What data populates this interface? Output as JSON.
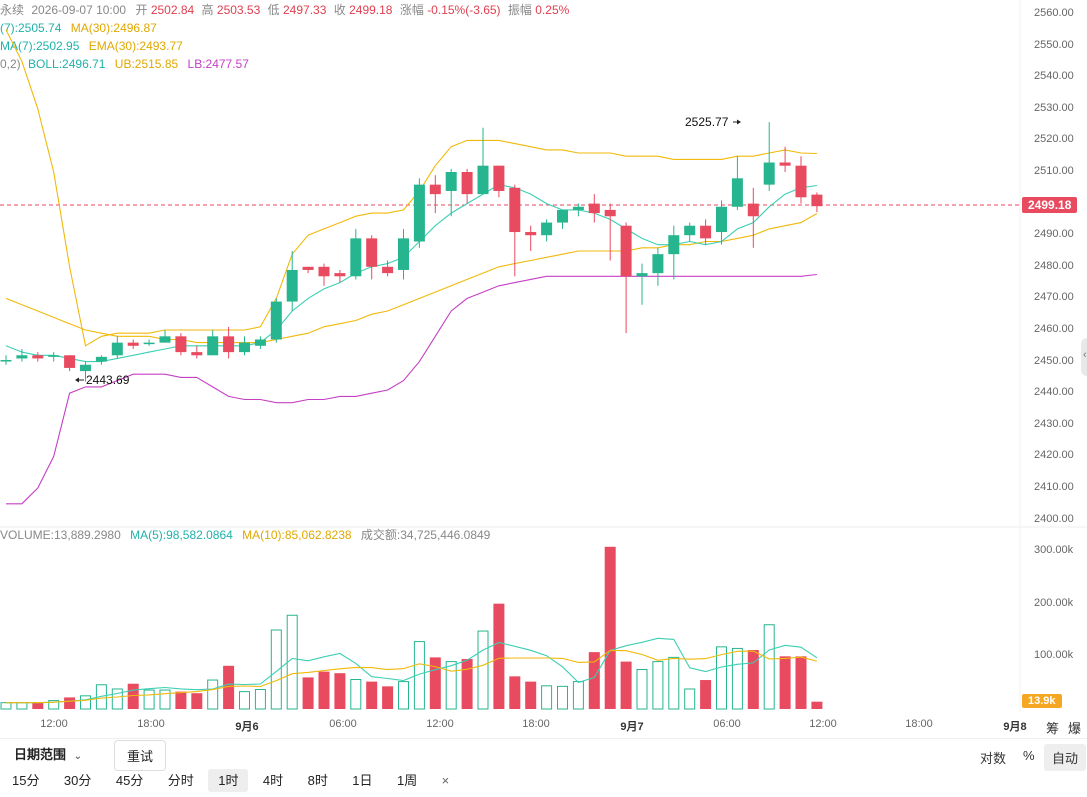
{
  "header": {
    "line1": {
      "symbol": "永续",
      "datetime": "2026-09-07 10:00",
      "open_label": "开",
      "open": "2502.84",
      "high_label": "高",
      "high": "2503.53",
      "low_label": "低",
      "low": "2497.33",
      "close_label": "收",
      "close": "2499.18",
      "change_label": "涨幅",
      "change": "-0.15%(-3.65)",
      "amp_label": "振幅",
      "amp": "0.25%"
    },
    "line2": {
      "ma7": "(7):2505.74",
      "ma30": "MA(30):2496.87"
    },
    "line3": {
      "ema7": "MA(7):2502.95",
      "ema30": "EMA(30):2493.77"
    },
    "line4": {
      "boll_prefix": "0,2)",
      "boll": "BOLL:2496.71",
      "ub": "UB:2515.85",
      "lb": "LB:2477.57"
    }
  },
  "volume_header": {
    "volume": "VOLUME:13,889.2980",
    "ma5": "MA(5):98,582.0864",
    "ma10": "MA(10):85,062.8238",
    "turnover": "成交额:34,725,446.0849"
  },
  "price_axis": [
    "2560.00",
    "2550.00",
    "2540.00",
    "2530.00",
    "2520.00",
    "2510.00",
    "2499.18",
    "2490.00",
    "2480.00",
    "2470.00",
    "2460.00",
    "2450.00",
    "2440.00",
    "2430.00",
    "2420.00",
    "2410.00",
    "2400.00"
  ],
  "volume_axis": [
    "300.00k",
    "200.00k",
    "100.00k"
  ],
  "current_price": "2499.18",
  "current_volume": "13.9k",
  "annotations": {
    "high": "2525.77",
    "low": "2443.69"
  },
  "time_axis": [
    "12:00",
    "18:00",
    "9月6",
    "06:00",
    "12:00",
    "18:00",
    "9月7",
    "06:00",
    "12:00",
    "18:00",
    "9月8"
  ],
  "corner_labels": [
    "筹",
    "爆"
  ],
  "toolbar": {
    "date_range": "日期范围",
    "reset": "重试",
    "log_scale": "对数",
    "percent": "%",
    "auto": "自动",
    "intervals": [
      "15分",
      "30分",
      "45分",
      "分时",
      "1时",
      "4时",
      "8时",
      "1日",
      "1周"
    ],
    "active_interval": "1时",
    "close": "×"
  },
  "colors": {
    "up": "#26b58e",
    "down": "#e84a5f",
    "ma_short": "#3ccfb3",
    "ma_long": "#f0b90b",
    "boll_lower": "#c540c5"
  },
  "chart_data": {
    "type": "candlestick",
    "price_ylim": [
      2400,
      2560
    ],
    "volume_ylim": [
      0,
      300000
    ],
    "candles": [
      {
        "o": 2450.5,
        "h": 2452,
        "l": 2449,
        "c": 2450.5
      },
      {
        "o": 2451,
        "h": 2454,
        "l": 2450,
        "c": 2452
      },
      {
        "o": 2452,
        "h": 2453,
        "l": 2450,
        "c": 2451
      },
      {
        "o": 2451.5,
        "h": 2453,
        "l": 2450,
        "c": 2452
      },
      {
        "o": 2452,
        "h": 2452,
        "l": 2447,
        "c": 2448
      },
      {
        "o": 2447,
        "h": 2450,
        "l": 2443.69,
        "c": 2449
      },
      {
        "o": 2450,
        "h": 2452,
        "l": 2449,
        "c": 2451.5
      },
      {
        "o": 2452,
        "h": 2458,
        "l": 2451,
        "c": 2456
      },
      {
        "o": 2456,
        "h": 2457,
        "l": 2454,
        "c": 2455
      },
      {
        "o": 2456,
        "h": 2457,
        "l": 2455,
        "c": 2456
      },
      {
        "o": 2456,
        "h": 2460,
        "l": 2456,
        "c": 2458
      },
      {
        "o": 2458,
        "h": 2459,
        "l": 2452,
        "c": 2453
      },
      {
        "o": 2453,
        "h": 2455,
        "l": 2451,
        "c": 2452
      },
      {
        "o": 2452,
        "h": 2460,
        "l": 2452,
        "c": 2458
      },
      {
        "o": 2458,
        "h": 2461,
        "l": 2451,
        "c": 2453
      },
      {
        "o": 2453,
        "h": 2458,
        "l": 2452,
        "c": 2456
      },
      {
        "o": 2455,
        "h": 2458,
        "l": 2454,
        "c": 2457
      },
      {
        "o": 2457,
        "h": 2470,
        "l": 2456,
        "c": 2469
      },
      {
        "o": 2469,
        "h": 2485,
        "l": 2466,
        "c": 2479
      },
      {
        "o": 2480,
        "h": 2480,
        "l": 2478,
        "c": 2479
      },
      {
        "o": 2480,
        "h": 2481,
        "l": 2474,
        "c": 2477
      },
      {
        "o": 2478,
        "h": 2479,
        "l": 2475,
        "c": 2477
      },
      {
        "o": 2477,
        "h": 2492,
        "l": 2476,
        "c": 2489
      },
      {
        "o": 2489,
        "h": 2490,
        "l": 2476,
        "c": 2480
      },
      {
        "o": 2480,
        "h": 2482,
        "l": 2477,
        "c": 2478
      },
      {
        "o": 2479,
        "h": 2492,
        "l": 2476,
        "c": 2489
      },
      {
        "o": 2488,
        "h": 2508,
        "l": 2486,
        "c": 2506
      },
      {
        "o": 2506,
        "h": 2509,
        "l": 2497,
        "c": 2503
      },
      {
        "o": 2504,
        "h": 2511,
        "l": 2496,
        "c": 2510
      },
      {
        "o": 2510,
        "h": 2511,
        "l": 2500,
        "c": 2503
      },
      {
        "o": 2503,
        "h": 2524,
        "l": 2503,
        "c": 2512
      },
      {
        "o": 2512,
        "h": 2512,
        "l": 2502,
        "c": 2504
      },
      {
        "o": 2505,
        "h": 2506,
        "l": 2477,
        "c": 2491
      },
      {
        "o": 2491,
        "h": 2493,
        "l": 2485,
        "c": 2490
      },
      {
        "o": 2490,
        "h": 2495,
        "l": 2488,
        "c": 2494
      },
      {
        "o": 2494,
        "h": 2498,
        "l": 2492,
        "c": 2498
      },
      {
        "o": 2498,
        "h": 2500,
        "l": 2496,
        "c": 2499
      },
      {
        "o": 2500,
        "h": 2503,
        "l": 2494,
        "c": 2497
      },
      {
        "o": 2498,
        "h": 2500,
        "l": 2482,
        "c": 2496
      },
      {
        "o": 2493,
        "h": 2494,
        "l": 2459,
        "c": 2477
      },
      {
        "o": 2477,
        "h": 2481,
        "l": 2468,
        "c": 2478
      },
      {
        "o": 2478,
        "h": 2486,
        "l": 2474,
        "c": 2484
      },
      {
        "o": 2484,
        "h": 2493,
        "l": 2476,
        "c": 2490
      },
      {
        "o": 2490,
        "h": 2494,
        "l": 2488,
        "c": 2493
      },
      {
        "o": 2493,
        "h": 2495,
        "l": 2487,
        "c": 2489
      },
      {
        "o": 2491,
        "h": 2501,
        "l": 2487,
        "c": 2499
      },
      {
        "o": 2499,
        "h": 2515,
        "l": 2498,
        "c": 2508
      },
      {
        "o": 2500,
        "h": 2505,
        "l": 2486,
        "c": 2496
      },
      {
        "o": 2506,
        "h": 2525.77,
        "l": 2504,
        "c": 2513
      },
      {
        "o": 2513,
        "h": 2518,
        "l": 2510,
        "c": 2512
      },
      {
        "o": 2512,
        "h": 2515,
        "l": 2500,
        "c": 2502
      },
      {
        "o": 2502.84,
        "h": 2503.53,
        "l": 2497.33,
        "c": 2499.18
      }
    ],
    "volumes": [
      12000,
      12000,
      12000,
      16000,
      22000,
      25000,
      46000,
      38000,
      48000,
      36000,
      36000,
      33000,
      30000,
      55000,
      82000,
      33000,
      37000,
      150000,
      178000,
      60000,
      71000,
      68000,
      56000,
      52000,
      43000,
      52000,
      128000,
      98000,
      90000,
      95000,
      148000,
      200000,
      62000,
      52000,
      44000,
      43000,
      52000,
      108000,
      308000,
      90000,
      75000,
      90000,
      98000,
      38000,
      55000,
      118000,
      115000,
      112000,
      160000,
      100000,
      100000,
      13889
    ],
    "ma_short": [
      2455,
      2453,
      2452,
      2452,
      2451,
      2450,
      2450,
      2451,
      2452,
      2453,
      2454,
      2455,
      2455,
      2455,
      2455,
      2455,
      2456,
      2460,
      2466,
      2470,
      2473,
      2475,
      2478,
      2480,
      2481,
      2483,
      2488,
      2493,
      2497,
      2500,
      2503,
      2506,
      2505,
      2503,
      2500,
      2498,
      2498,
      2497,
      2495,
      2492,
      2489,
      2487,
      2487,
      2488,
      2487,
      2488,
      2492,
      2494,
      2499,
      2503,
      2505,
      2505.74
    ],
    "ma_long": [
      2470,
      2468,
      2466,
      2464,
      2462,
      2460,
      2459,
      2458,
      2458,
      2458,
      2457,
      2457,
      2456,
      2456,
      2456,
      2456,
      2456,
      2457,
      2458,
      2459,
      2461,
      2462,
      2463,
      2465,
      2466,
      2468,
      2470,
      2472,
      2474,
      2476,
      2478,
      2480,
      2481,
      2482,
      2483,
      2484,
      2485,
      2485,
      2485,
      2485,
      2486,
      2486,
      2487,
      2487,
      2488,
      2488,
      2489,
      2490,
      2492,
      2493,
      2494,
      2496.87
    ],
    "boll_upper": [
      2555,
      2545,
      2530,
      2510,
      2480,
      2455,
      2458,
      2459,
      2459,
      2459,
      2460,
      2460,
      2460,
      2460,
      2460,
      2460,
      2461,
      2470,
      2484,
      2490,
      2492,
      2494,
      2496,
      2497,
      2497,
      2498,
      2504,
      2512,
      2518,
      2520,
      2520,
      2520,
      2519,
      2518,
      2517,
      2517,
      2516,
      2516,
      2516,
      2515,
      2515,
      2515,
      2514,
      2514,
      2514,
      2514,
      2515,
      2515,
      2516,
      2517,
      2516,
      2515.85
    ],
    "boll_lower": [
      2405,
      2405,
      2410,
      2420,
      2440,
      2442,
      2442,
      2444,
      2446,
      2446,
      2446,
      2445,
      2445,
      2442,
      2439,
      2438,
      2438,
      2437,
      2437,
      2438,
      2438,
      2439,
      2439,
      2440,
      2441,
      2444,
      2450,
      2458,
      2466,
      2470,
      2472,
      2474,
      2475,
      2476,
      2477,
      2477,
      2477,
      2477,
      2477,
      2477,
      2477,
      2477,
      2477,
      2477,
      2477,
      2477,
      2477,
      2477,
      2477,
      2477,
      2477,
      2477.57
    ]
  }
}
